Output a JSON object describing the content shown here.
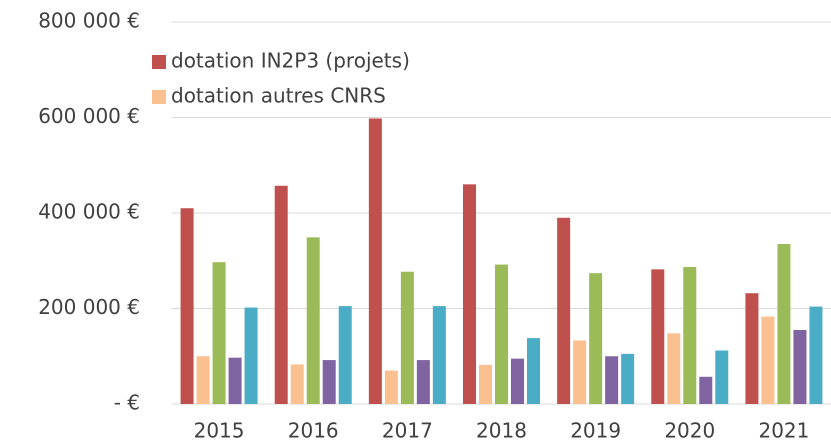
{
  "chart_data": {
    "type": "bar",
    "categories": [
      "2015",
      "2016",
      "2017",
      "2018",
      "2019",
      "2020",
      "2021"
    ],
    "series": [
      {
        "name": "dotation IN2P3 (projets)",
        "color": "#c0504d",
        "values": [
          410000,
          457000,
          598000,
          460000,
          390000,
          282000,
          232000
        ]
      },
      {
        "name": "dotation autres CNRS",
        "color": "#fac090",
        "values": [
          100000,
          83000,
          70000,
          82000,
          133000,
          148000,
          183000
        ]
      },
      {
        "color": "#9bbb59",
        "values": [
          297000,
          349000,
          277000,
          292000,
          274000,
          287000,
          335000
        ]
      },
      {
        "color": "#8064a2",
        "values": [
          97000,
          92000,
          92000,
          95000,
          100000,
          57000,
          155000
        ]
      },
      {
        "color": "#4bacc6",
        "values": [
          202000,
          205000,
          205000,
          138000,
          105000,
          112000,
          204000
        ]
      }
    ],
    "ylim": [
      0,
      800000
    ],
    "yticks": [
      {
        "value": 0,
        "label": "-   €"
      },
      {
        "value": 200000,
        "label": "200 000 €"
      },
      {
        "value": 400000,
        "label": "400 000 €"
      },
      {
        "value": 600000,
        "label": "600 000 €"
      },
      {
        "value": 800000,
        "label": "800 000 €"
      }
    ],
    "grid": true,
    "legend": "top-left"
  }
}
